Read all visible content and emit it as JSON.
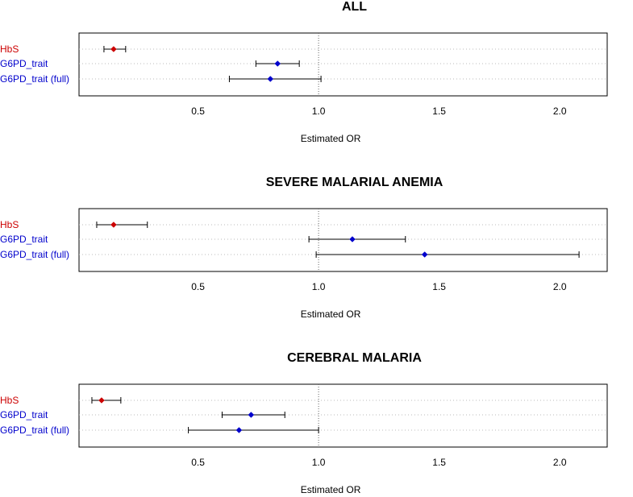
{
  "colors": {
    "hbs": "#cc0000",
    "g6pd": "#0000cc",
    "frame": "#000000",
    "dotted": "#bbbbbb",
    "reference": "#666666"
  },
  "chart_data": [
    {
      "type": "forest",
      "title": "ALL",
      "xlabel": "Estimated OR",
      "xlim": [
        0.02,
        2.18
      ],
      "xticks": [
        0.5,
        1.0,
        1.5,
        2.0
      ],
      "xtick_labels": [
        "0.5",
        "1.0",
        "1.5",
        "2.0"
      ],
      "reference_line": 1.0,
      "rows": [
        {
          "label": "HbS",
          "color_key": "hbs",
          "estimate": 0.15,
          "lower": 0.11,
          "upper": 0.2
        },
        {
          "label": "G6PD_trait",
          "color_key": "g6pd",
          "estimate": 0.83,
          "lower": 0.74,
          "upper": 0.92
        },
        {
          "label": "G6PD_trait (full)",
          "color_key": "g6pd",
          "estimate": 0.8,
          "lower": 0.63,
          "upper": 1.01
        }
      ]
    },
    {
      "type": "forest",
      "title": "SEVERE MALARIAL ANEMIA",
      "xlabel": "Estimated OR",
      "xlim": [
        0.02,
        2.18
      ],
      "xticks": [
        0.5,
        1.0,
        1.5,
        2.0
      ],
      "xtick_labels": [
        "0.5",
        "1.0",
        "1.5",
        "2.0"
      ],
      "reference_line": 1.0,
      "rows": [
        {
          "label": "HbS",
          "color_key": "hbs",
          "estimate": 0.15,
          "lower": 0.08,
          "upper": 0.29
        },
        {
          "label": "G6PD_trait",
          "color_key": "g6pd",
          "estimate": 1.14,
          "lower": 0.96,
          "upper": 1.36
        },
        {
          "label": "G6PD_trait (full)",
          "color_key": "g6pd",
          "estimate": 1.44,
          "lower": 0.99,
          "upper": 2.08
        }
      ]
    },
    {
      "type": "forest",
      "title": "CEREBRAL MALARIA",
      "xlabel": "Estimated OR",
      "xlim": [
        0.02,
        2.18
      ],
      "xticks": [
        0.5,
        1.0,
        1.5,
        2.0
      ],
      "xtick_labels": [
        "0.5",
        "1.0",
        "1.5",
        "2.0"
      ],
      "reference_line": 1.0,
      "rows": [
        {
          "label": "HbS",
          "color_key": "hbs",
          "estimate": 0.1,
          "lower": 0.06,
          "upper": 0.18
        },
        {
          "label": "G6PD_trait",
          "color_key": "g6pd",
          "estimate": 0.72,
          "lower": 0.6,
          "upper": 0.86
        },
        {
          "label": "G6PD_trait (full)",
          "color_key": "g6pd",
          "estimate": 0.67,
          "lower": 0.46,
          "upper": 1.0
        }
      ]
    }
  ]
}
